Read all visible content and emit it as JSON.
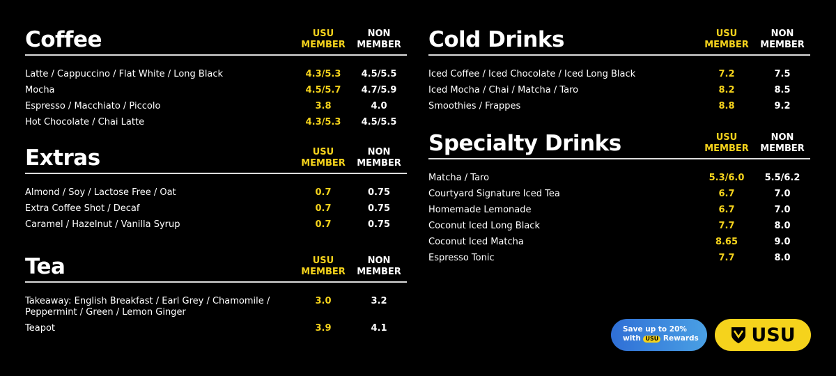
{
  "sections": [
    {
      "title": "Coffee",
      "member_label": [
        "USU",
        "MEMBER"
      ],
      "non_member_label": [
        "NON",
        "MEMBER"
      ],
      "items": [
        {
          "name": "Latte / Cappuccino / Flat White / Long Black",
          "member": "4.3/5.3",
          "non_member": "4.5/5.5"
        },
        {
          "name": "Mocha",
          "member": "4.5/5.7",
          "non_member": "4.7/5.9"
        },
        {
          "name": "Espresso / Macchiato / Piccolo",
          "member": "3.8",
          "non_member": "4.0"
        },
        {
          "name": "Hot Chocolate / Chai Latte",
          "member": "4.3/5.3",
          "non_member": "4.5/5.5"
        }
      ]
    },
    {
      "title": "Extras",
      "member_label": [
        "USU",
        "MEMBER"
      ],
      "non_member_label": [
        "NON",
        "MEMBER"
      ],
      "items": [
        {
          "name": "Almond / Soy / Lactose Free / Oat",
          "member": "0.7",
          "non_member": "0.75"
        },
        {
          "name": "Extra Coffee Shot / Decaf",
          "member": "0.7",
          "non_member": "0.75"
        },
        {
          "name": "Caramel / Hazelnut / Vanilla Syrup",
          "member": "0.7",
          "non_member": "0.75"
        }
      ]
    },
    {
      "title": "Tea",
      "member_label": [
        "USU",
        "MEMBER"
      ],
      "non_member_label": [
        "NON",
        "MEMBER"
      ],
      "items": [
        {
          "name": "Takeaway: English Breakfast / Earl Grey / Chamomile / Peppermint / Green / Lemon Ginger",
          "member": "3.0",
          "non_member": "3.2"
        },
        {
          "name": "Teapot",
          "member": "3.9",
          "non_member": "4.1"
        }
      ]
    },
    {
      "title": "Cold Drinks",
      "member_label": [
        "USU",
        "MEMBER"
      ],
      "non_member_label": [
        "NON",
        "MEMBER"
      ],
      "items": [
        {
          "name": "Iced Coffee / Iced Chocolate / Iced Long Black",
          "member": "7.2",
          "non_member": "7.5"
        },
        {
          "name": "Iced Mocha / Chai / Matcha / Taro",
          "member": "8.2",
          "non_member": "8.5"
        },
        {
          "name": "Smoothies / Frappes",
          "member": "8.8",
          "non_member": "9.2"
        }
      ]
    },
    {
      "title": "Specialty Drinks",
      "member_label": [
        "USU",
        "MEMBER"
      ],
      "non_member_label": [
        "NON",
        "MEMBER"
      ],
      "items": [
        {
          "name": "Matcha / Taro",
          "member": "5.3/6.0",
          "non_member": "5.5/6.2"
        },
        {
          "name": "Courtyard Signature Iced Tea",
          "member": "6.7",
          "non_member": "7.0"
        },
        {
          "name": "Homemade Lemonade",
          "member": "6.7",
          "non_member": "7.0"
        },
        {
          "name": "Coconut Iced Long Black",
          "member": "7.7",
          "non_member": "8.0"
        },
        {
          "name": "Coconut Iced Matcha",
          "member": "8.65",
          "non_member": "9.0"
        },
        {
          "name": "Espresso Tonic",
          "member": "7.7",
          "non_member": "8.0"
        }
      ]
    }
  ],
  "promo": {
    "line1": "Save up to 20%",
    "with": "with",
    "badge": "USU",
    "rewards": "Rewards"
  },
  "logo": {
    "text": "USU"
  }
}
